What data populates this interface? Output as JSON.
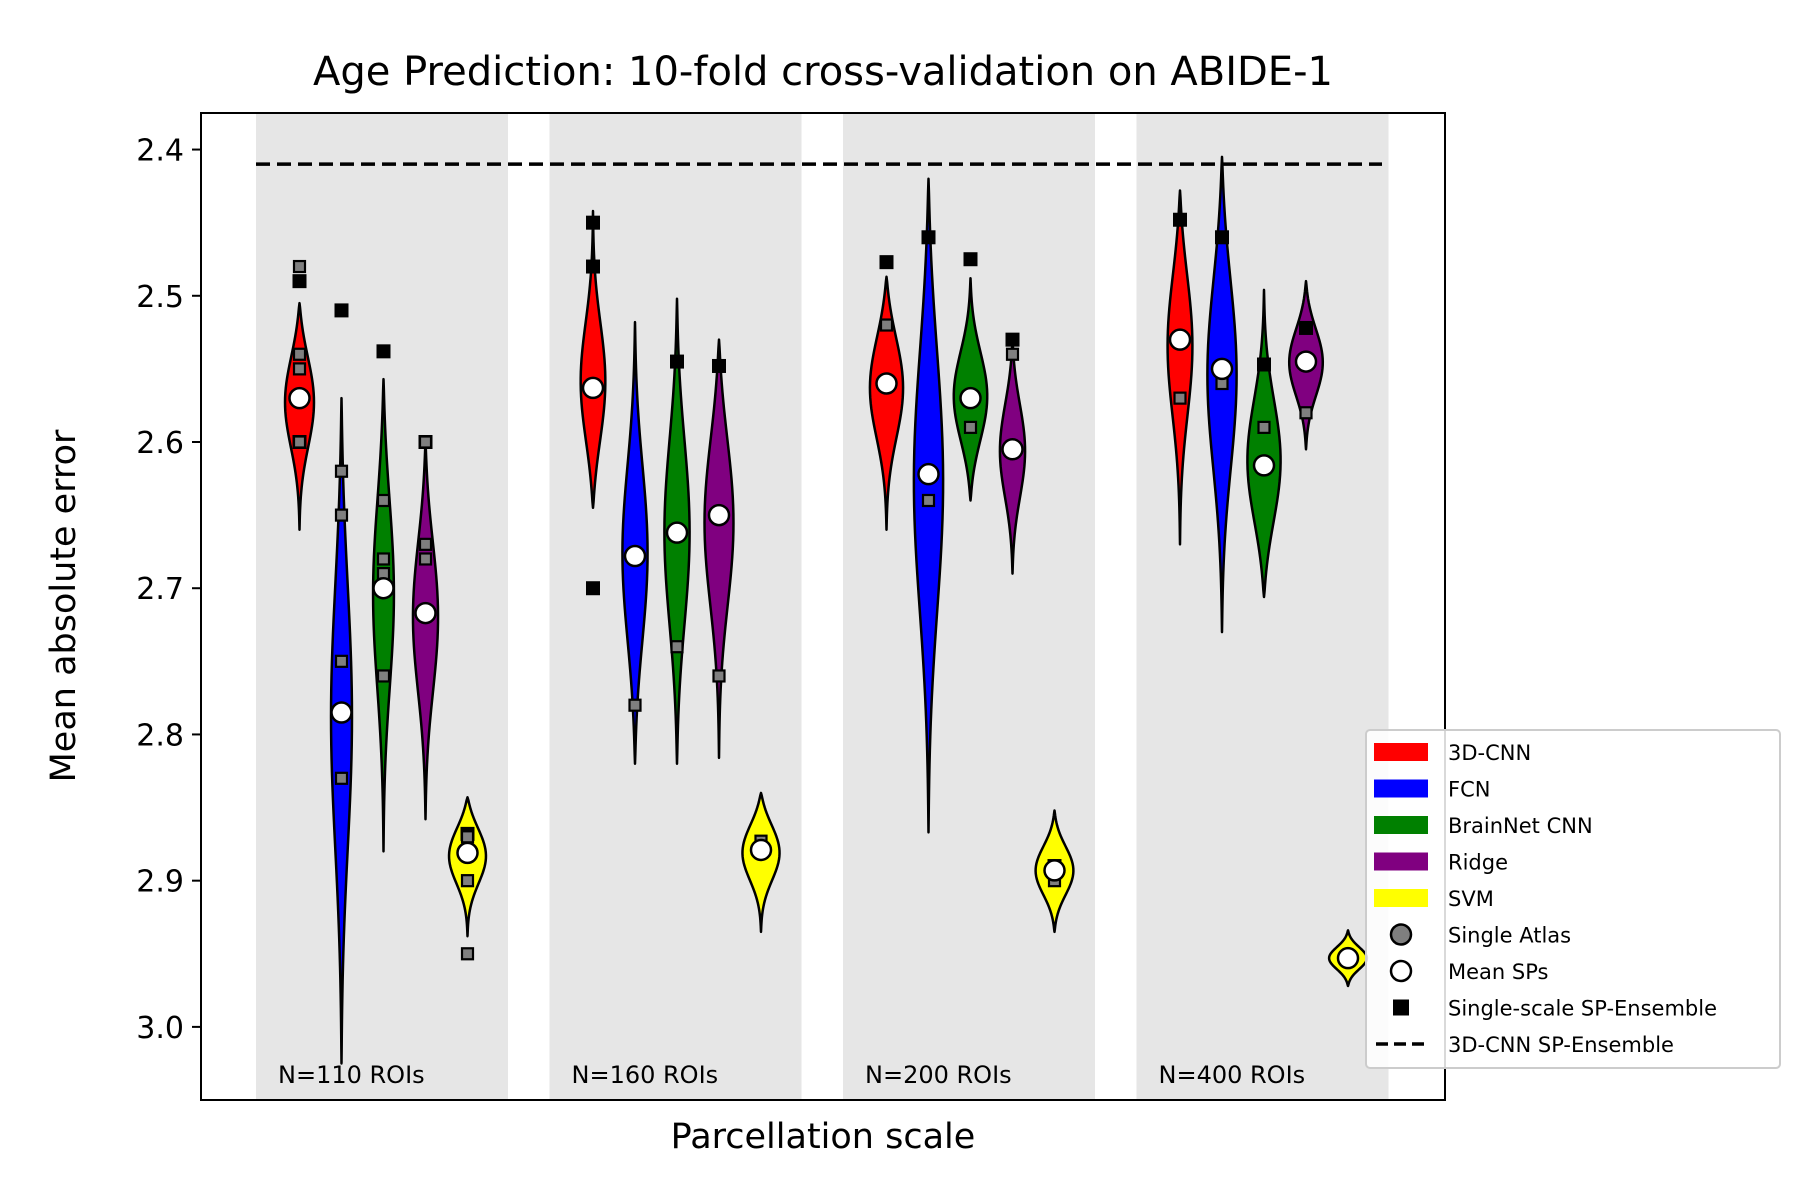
{
  "chart_data": {
    "type": "violin",
    "title": "Age Prediction: 10-fold cross-validation on ABIDE-1",
    "xlabel": "Parcellation scale",
    "ylabel": "Mean absolute error",
    "y_inverted": true,
    "ylim": [
      3.05,
      2.375
    ],
    "yticks": [
      2.4,
      2.5,
      2.6,
      2.7,
      2.8,
      2.9,
      3.0
    ],
    "ytick_labels": [
      "2.4",
      "2.5",
      "2.6",
      "2.7",
      "2.8",
      "2.9",
      "3.0"
    ],
    "groups": [
      "N=110 ROIs",
      "N=160 ROIs",
      "N=200 ROIs",
      "N=400 ROIs"
    ],
    "methods": [
      {
        "name": "3D-CNN",
        "color": "#ff0000"
      },
      {
        "name": "FCN",
        "color": "#0000ff"
      },
      {
        "name": "BrainNet CNN",
        "color": "#008000"
      },
      {
        "name": "Ridge",
        "color": "#800080"
      },
      {
        "name": "SVM",
        "color": "#ffff00"
      }
    ],
    "reference_line": {
      "name": "3D-CNN SP-Ensemble",
      "value": 2.41
    },
    "legend": {
      "placement": "lower-right",
      "entries": [
        "3D-CNN",
        "FCN",
        "BrainNet CNN",
        "Ridge",
        "SVM",
        "Single Atlas",
        "Mean SPs",
        "Single-scale SP-Ensemble",
        "3D-CNN SP-Ensemble"
      ]
    },
    "series": [
      {
        "group": "N=110 ROIs",
        "method": "3D-CNN",
        "min": 2.505,
        "max": 2.66,
        "violin_width": 0.35,
        "mean_sp": 2.57,
        "single_atlas": [
          2.48,
          2.54,
          2.55,
          2.6
        ],
        "single_scale_ensemble": [
          2.49,
          2.6
        ]
      },
      {
        "group": "N=110 ROIs",
        "method": "FCN",
        "min": 2.57,
        "max": 3.025,
        "violin_width": 0.25,
        "mean_sp": 2.785,
        "single_atlas": [
          2.62,
          2.65,
          2.75,
          2.83
        ],
        "single_scale_ensemble": [
          2.51
        ]
      },
      {
        "group": "N=110 ROIs",
        "method": "BrainNet CNN",
        "min": 2.557,
        "max": 2.88,
        "violin_width": 0.25,
        "mean_sp": 2.7,
        "single_atlas": [
          2.64,
          2.68,
          2.69,
          2.76
        ],
        "single_scale_ensemble": [
          2.538
        ]
      },
      {
        "group": "N=110 ROIs",
        "method": "Ridge",
        "min": 2.6,
        "max": 2.858,
        "violin_width": 0.3,
        "mean_sp": 2.717,
        "single_atlas": [
          2.6,
          2.67,
          2.68
        ],
        "single_scale_ensemble": [
          2.6
        ]
      },
      {
        "group": "N=110 ROIs",
        "method": "SVM",
        "min": 2.843,
        "max": 2.938,
        "violin_width": 0.45,
        "mean_sp": 2.881,
        "single_atlas": [
          2.87,
          2.9,
          2.95
        ],
        "single_scale_ensemble": [
          2.868
        ]
      },
      {
        "group": "N=160 ROIs",
        "method": "3D-CNN",
        "min": 2.442,
        "max": 2.645,
        "violin_width": 0.3,
        "mean_sp": 2.563,
        "single_atlas": [],
        "single_scale_ensemble": [
          2.48,
          2.45,
          2.7
        ]
      },
      {
        "group": "N=160 ROIs",
        "method": "FCN",
        "min": 2.518,
        "max": 2.82,
        "violin_width": 0.3,
        "mean_sp": 2.678,
        "single_atlas": [
          2.78
        ],
        "single_scale_ensemble": []
      },
      {
        "group": "N=160 ROIs",
        "method": "BrainNet CNN",
        "min": 2.502,
        "max": 2.82,
        "violin_width": 0.3,
        "mean_sp": 2.662,
        "single_atlas": [
          2.74
        ],
        "single_scale_ensemble": [
          2.545
        ]
      },
      {
        "group": "N=160 ROIs",
        "method": "Ridge",
        "min": 2.53,
        "max": 2.816,
        "violin_width": 0.35,
        "mean_sp": 2.65,
        "single_atlas": [
          2.76
        ],
        "single_scale_ensemble": [
          2.548
        ]
      },
      {
        "group": "N=160 ROIs",
        "method": "SVM",
        "min": 2.84,
        "max": 2.935,
        "violin_width": 0.45,
        "mean_sp": 2.879,
        "single_atlas": [
          2.873
        ],
        "single_scale_ensemble": []
      },
      {
        "group": "N=200 ROIs",
        "method": "3D-CNN",
        "min": 2.487,
        "max": 2.66,
        "violin_width": 0.4,
        "mean_sp": 2.56,
        "single_atlas": [
          2.52
        ],
        "single_scale_ensemble": [
          2.477
        ]
      },
      {
        "group": "N=200 ROIs",
        "method": "FCN",
        "min": 2.42,
        "max": 2.867,
        "violin_width": 0.35,
        "mean_sp": 2.622,
        "single_atlas": [
          2.64
        ],
        "single_scale_ensemble": [
          2.46
        ]
      },
      {
        "group": "N=200 ROIs",
        "method": "BrainNet CNN",
        "min": 2.488,
        "max": 2.64,
        "violin_width": 0.4,
        "mean_sp": 2.57,
        "single_atlas": [
          2.59
        ],
        "single_scale_ensemble": [
          2.475
        ]
      },
      {
        "group": "N=200 ROIs",
        "method": "Ridge",
        "min": 2.53,
        "max": 2.69,
        "violin_width": 0.3,
        "mean_sp": 2.605,
        "single_atlas": [
          2.54
        ],
        "single_scale_ensemble": [
          2.53
        ]
      },
      {
        "group": "N=200 ROIs",
        "method": "SVM",
        "min": 2.852,
        "max": 2.935,
        "violin_width": 0.45,
        "mean_sp": 2.893,
        "single_atlas": [
          2.9
        ],
        "single_scale_ensemble": [
          2.89
        ]
      },
      {
        "group": "N=400 ROIs",
        "method": "3D-CNN",
        "min": 2.428,
        "max": 2.67,
        "violin_width": 0.3,
        "mean_sp": 2.53,
        "single_atlas": [
          2.57
        ],
        "single_scale_ensemble": [
          2.448
        ]
      },
      {
        "group": "N=400 ROIs",
        "method": "FCN",
        "min": 2.405,
        "max": 2.73,
        "violin_width": 0.35,
        "mean_sp": 2.55,
        "single_atlas": [
          2.56
        ],
        "single_scale_ensemble": [
          2.46
        ]
      },
      {
        "group": "N=400 ROIs",
        "method": "BrainNet CNN",
        "min": 2.496,
        "max": 2.706,
        "violin_width": 0.4,
        "mean_sp": 2.616,
        "single_atlas": [
          2.59
        ],
        "single_scale_ensemble": [
          2.547
        ]
      },
      {
        "group": "N=400 ROIs",
        "method": "Ridge",
        "min": 2.49,
        "max": 2.605,
        "violin_width": 0.4,
        "mean_sp": 2.545,
        "single_atlas": [
          2.58
        ],
        "single_scale_ensemble": [
          2.522
        ]
      },
      {
        "group": "N=400 ROIs",
        "method": "SVM",
        "min": 2.934,
        "max": 2.972,
        "violin_width": 0.45,
        "mean_sp": 2.953,
        "single_atlas": [],
        "single_scale_ensemble": []
      }
    ]
  }
}
